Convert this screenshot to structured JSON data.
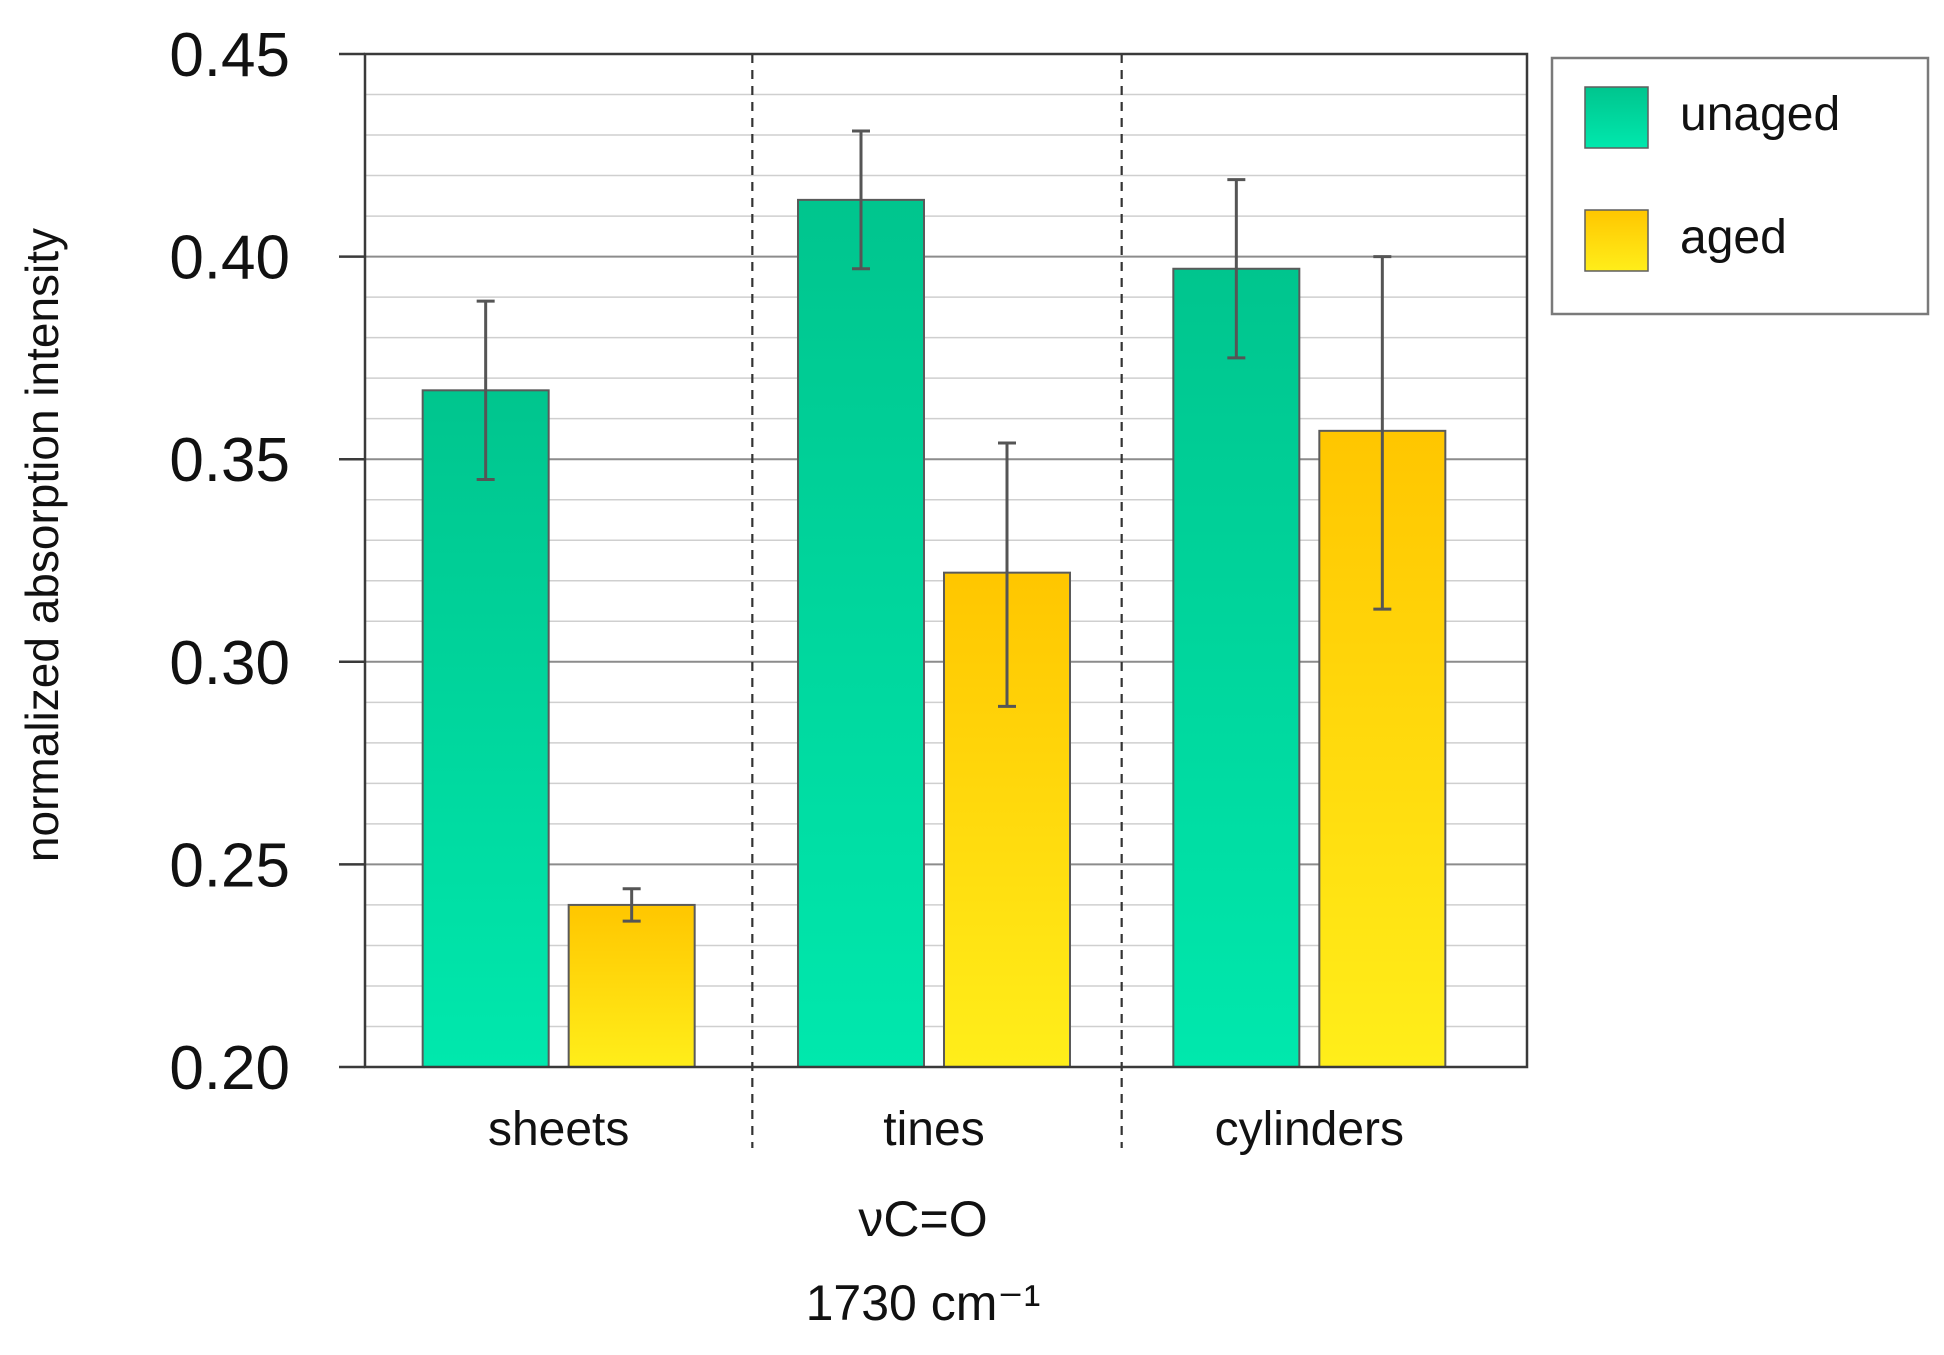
{
  "chart_data": {
    "type": "bar",
    "title": "",
    "xlabel": "νC=O",
    "xlabel_line2": "1730 cm⁻¹",
    "ylabel": "normalized absorption intensity",
    "ylim": [
      0.2,
      0.45
    ],
    "yticks": [
      0.2,
      0.25,
      0.3,
      0.35,
      0.4,
      0.45
    ],
    "ytick_labels": [
      "0.20",
      "0.25",
      "0.30",
      "0.35",
      "0.40",
      "0.45"
    ],
    "minor_grid_step": 0.01,
    "grid": true,
    "legend_position": "top-right",
    "categories": [
      "sheets",
      "tines",
      "cylinders"
    ],
    "series": [
      {
        "name": "unaged",
        "values": [
          0.367,
          0.414,
          0.397
        ],
        "err_low": [
          0.345,
          0.397,
          0.375
        ],
        "err_high": [
          0.389,
          0.431,
          0.419
        ],
        "color_top": "#00c58e",
        "color_bottom": "#00e8ad"
      },
      {
        "name": "aged",
        "values": [
          0.24,
          0.322,
          0.357
        ],
        "err_low": [
          0.236,
          0.289,
          0.313
        ],
        "err_high": [
          0.244,
          0.354,
          0.4
        ],
        "color_top": "#ffc600",
        "color_bottom": "#ffee1a"
      }
    ]
  }
}
